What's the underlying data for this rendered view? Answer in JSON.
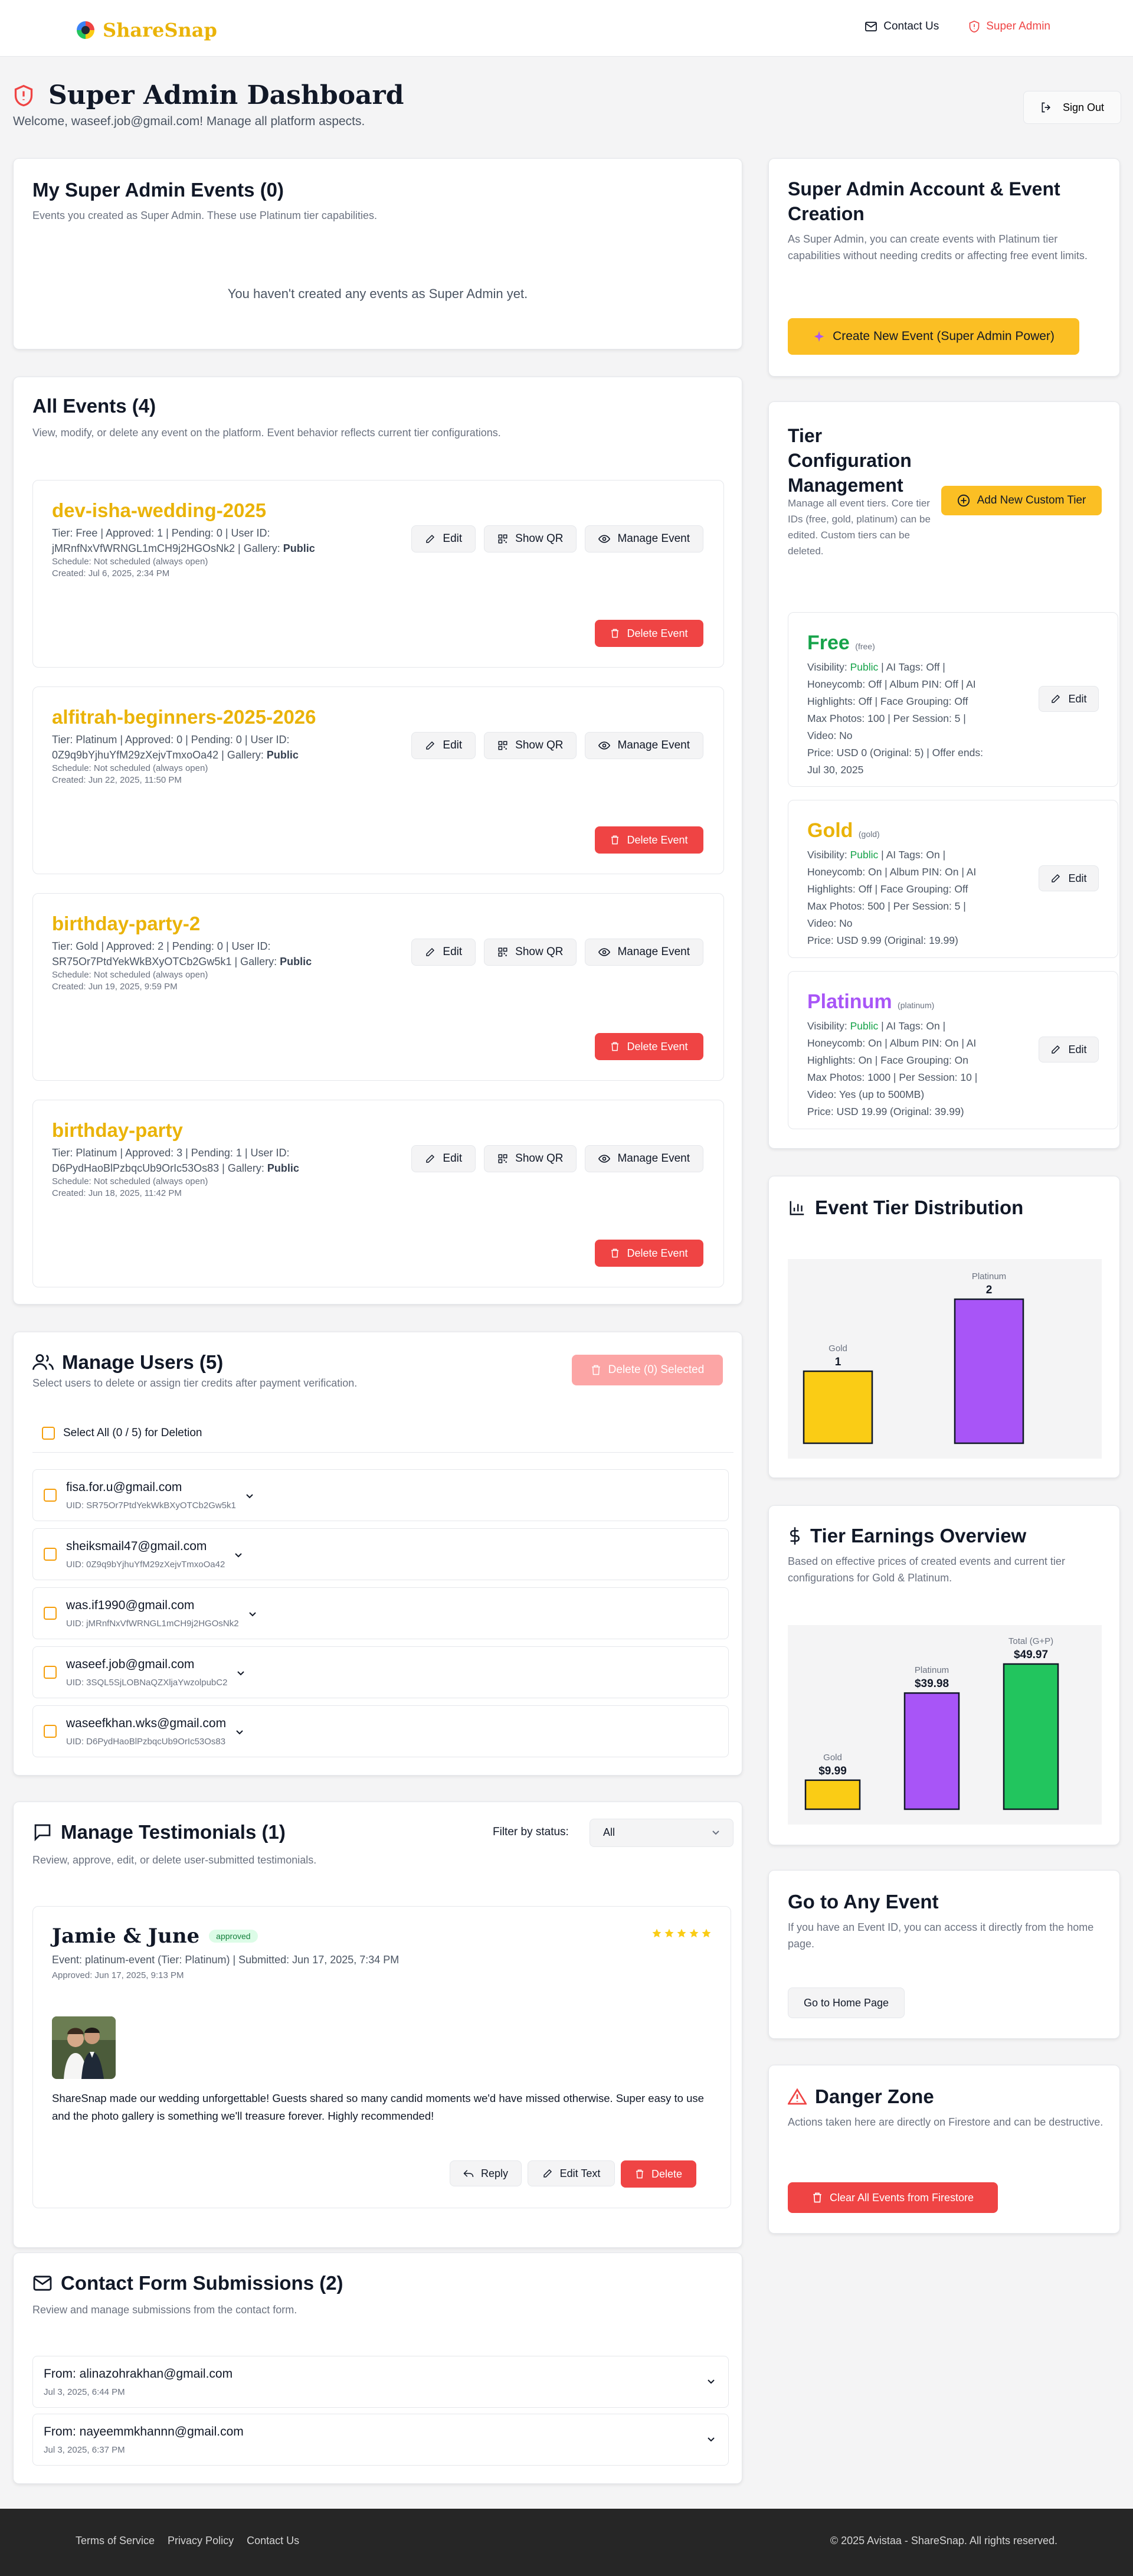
{
  "header": {
    "brand": "ShareSnap",
    "nav": [
      {
        "label": "Contact Us",
        "icon": "mail-icon"
      },
      {
        "label": "Super Admin",
        "icon": "shield-alert-icon",
        "color": "#ef4444"
      }
    ]
  },
  "page": {
    "title": "Super Admin Dashboard",
    "subtitle": "Welcome, waseef.job@gmail.com! Manage all platform aspects.",
    "sign_out": "Sign Out"
  },
  "my_events": {
    "title": "My Super Admin Events (0)",
    "description": "Events you created as Super Admin. These use Platinum tier capabilities.",
    "empty": "You haven't created any events as Super Admin yet."
  },
  "all_events": {
    "title": "All Events (4)",
    "description": "View, modify, or delete any event on the platform. Event behavior reflects current tier configurations.",
    "action_labels": {
      "edit": "Edit",
      "show_qr": "Show QR",
      "manage": "Manage Event",
      "delete": "Delete Event"
    },
    "items": [
      {
        "name": "dev-isha-wedding-2025",
        "tier_line": "Tier: Free | Approved: 1 | Pending: 0 | User ID:",
        "user_line_prefix": "jMRnfNxVfWRNGL1mCH9j2HGOsNk2 | Gallery: ",
        "gallery": "Public",
        "schedule": "Schedule: Not scheduled (always open)",
        "created": "Created: Jul 6, 2025, 2:34 PM"
      },
      {
        "name": "alfitrah-beginners-2025-2026",
        "tier_line": "Tier: Platinum | Approved: 0 | Pending: 0 | User ID:",
        "user_line_prefix": "0Z9q9bYjhuYfM29zXejvTmxoOa42 | Gallery: ",
        "gallery": "Public",
        "schedule": "Schedule: Not scheduled (always open)",
        "created": "Created: Jun 22, 2025, 11:50 PM"
      },
      {
        "name": "birthday-party-2",
        "tier_line": "Tier: Gold | Approved: 2 | Pending: 0 | User ID:",
        "user_line_prefix": "SR75Or7PtdYekWkBXyOTCb2Gw5k1 | Gallery: ",
        "gallery": "Public",
        "schedule": "Schedule: Not scheduled (always open)",
        "created": "Created: Jun 19, 2025, 9:59 PM"
      },
      {
        "name": "birthday-party",
        "tier_line": "Tier: Platinum | Approved: 3 | Pending: 1 | User ID:",
        "user_line_prefix": "D6PydHaoBlPzbqcUb9OrIc53Os83 | Gallery: ",
        "gallery": "Public",
        "schedule": "Schedule: Not scheduled (always open)",
        "created": "Created: Jun 18, 2025, 11:42 PM"
      }
    ]
  },
  "users": {
    "title": "Manage Users (5)",
    "description": "Select users to delete or assign tier credits after payment verification.",
    "delete_selected": "Delete (0) Selected",
    "select_all": "Select All (0 / 5) for Deletion",
    "items": [
      {
        "email": "fisa.for.u@gmail.com",
        "uid": "UID: SR75Or7PtdYekWkBXyOTCb2Gw5k1"
      },
      {
        "email": "sheiksmail47@gmail.com",
        "uid": "UID: 0Z9q9bYjhuYfM29zXejvTmxoOa42"
      },
      {
        "email": "was.if1990@gmail.com",
        "uid": "UID: jMRnfNxVfWRNGL1mCH9j2HGOsNk2"
      },
      {
        "email": "waseef.job@gmail.com",
        "uid": "UID: 3SQL5SjLOBNaQZXljaYwzolpubC2"
      },
      {
        "email": "waseefkhan.wks@gmail.com",
        "uid": "UID: D6PydHaoBlPzbqcUb9OrIc53Os83"
      }
    ]
  },
  "testimonials": {
    "title": "Manage Testimonials (1)",
    "description": "Review, approve, edit, or delete user-submitted testimonials.",
    "filter_label": "Filter by status:",
    "filter_value": "All",
    "item": {
      "name": "Jamie & June",
      "status": "approved",
      "event_line": "Event: platinum-event (Tier: Platinum) | Submitted: Jun 17, 2025, 7:34 PM",
      "approved_line": "Approved: Jun 17, 2025, 9:13 PM",
      "rating": 5,
      "text": "ShareSnap made our wedding unforgettable! Guests shared so many candid moments we'd have missed otherwise. Super easy to use and the photo gallery is something we'll treasure forever. Highly recommended!",
      "reply": "Reply",
      "edit": "Edit Text",
      "delete": "Delete"
    }
  },
  "contact": {
    "title": "Contact Form Submissions (2)",
    "description": "Review and manage submissions from the contact form.",
    "items": [
      {
        "from": "From: alinazohrakhan@gmail.com",
        "date": "Jul 3, 2025, 6:44 PM"
      },
      {
        "from": "From: nayeemmkhannn@gmail.com",
        "date": "Jul 3, 2025, 6:37 PM"
      }
    ]
  },
  "account": {
    "title": "Super Admin Account & Event Creation",
    "description": "As Super Admin, you can create events with Platinum tier capabilities without needing credits or affecting free event limits.",
    "button": "Create New Event (Super Admin Power)"
  },
  "tiers": {
    "title": "Tier Configuration Management",
    "description": "Manage all event tiers. Core tier IDs (free, gold, platinum) can be edited. Custom tiers can be deleted.",
    "add_button": "Add New Custom Tier",
    "edit_label": "Edit",
    "items": [
      {
        "name": "Free",
        "id": "(free)",
        "color": "#16a34a",
        "visibility_label": "Visibility: ",
        "visibility": "Public",
        "line1_rest": " | AI Tags: Off |",
        "lines": [
          "Honeycomb: Off | Album PIN: Off | AI",
          "Highlights: Off | Face Grouping: Off",
          "Max Photos: 100 | Per Session: 5 |",
          "Video: No",
          "Price: USD 0 (Original: 5) | Offer ends:",
          "Jul 30, 2025"
        ]
      },
      {
        "name": "Gold",
        "id": "(gold)",
        "color": "#eab308",
        "visibility_label": "Visibility: ",
        "visibility": "Public",
        "line1_rest": " | AI Tags: On |",
        "lines": [
          "Honeycomb: On | Album PIN: On | AI",
          "Highlights: Off | Face Grouping: Off",
          "Max Photos: 500 | Per Session: 5 |",
          "Video: No",
          "Price: USD 9.99 (Original: 19.99)"
        ]
      },
      {
        "name": "Platinum",
        "id": "(platinum)",
        "color": "#a855f7",
        "visibility_label": "Visibility: ",
        "visibility": "Public",
        "line1_rest": " | AI Tags: On |",
        "lines": [
          "Honeycomb: On | Album PIN: On | AI",
          "Highlights: On | Face Grouping: On",
          "Max Photos: 1000 | Per Session: 10 |",
          "Video: Yes (up to 500MB)",
          "Price: USD 19.99 (Original: 39.99)"
        ]
      }
    ]
  },
  "distribution": {
    "title": "Event Tier Distribution"
  },
  "earnings": {
    "title": "Tier Earnings Overview",
    "description": "Based on effective prices of created events and current tier configurations for Gold & Platinum."
  },
  "chart_data": [
    {
      "type": "bar",
      "title": "Event Tier Distribution",
      "categories": [
        "Gold",
        "Platinum"
      ],
      "values": [
        1,
        2
      ],
      "value_labels": [
        "1",
        "2"
      ],
      "colors": [
        "#facc15",
        "#a855f7"
      ],
      "ylim": [
        0,
        2
      ]
    },
    {
      "type": "bar",
      "title": "Tier Earnings Overview",
      "categories": [
        "Gold",
        "Platinum",
        "Total (G+P)"
      ],
      "values": [
        9.99,
        39.98,
        49.97
      ],
      "value_labels": [
        "$9.99",
        "$39.98",
        "$49.97"
      ],
      "colors": [
        "#facc15",
        "#a855f7",
        "#22c55e"
      ],
      "ylim": [
        0,
        49.97
      ]
    }
  ],
  "go_to_event": {
    "title": "Go to Any Event",
    "description": "If you have an Event ID, you can access it directly from the home page.",
    "button": "Go to Home Page"
  },
  "danger": {
    "title": "Danger Zone",
    "description": "Actions taken here are directly on Firestore and can be destructive.",
    "button": "Clear All Events from Firestore"
  },
  "footer": {
    "links": [
      "Terms of Service",
      "Privacy Policy",
      "Contact Us"
    ],
    "copyright": "© 2025 Avistaa - ShareSnap. All rights reserved."
  }
}
